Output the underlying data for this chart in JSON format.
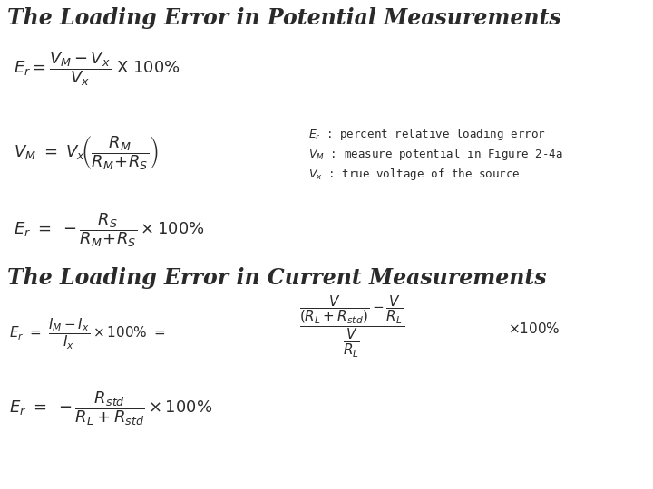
{
  "bg_color": "#ffffff",
  "title1": "The Loading Error in Potential Measurements",
  "title2": "The Loading Error in Current Measurements",
  "title_fontsize": 17,
  "eq_color": "#2a2a2a",
  "ann_color": "#2a2a2a",
  "ann1": "$E_r$ : percent relative loading error",
  "ann2": "$V_M$ : measure potential in Figure 2-4a",
  "ann3": "$V_x$ : true voltage of the source"
}
